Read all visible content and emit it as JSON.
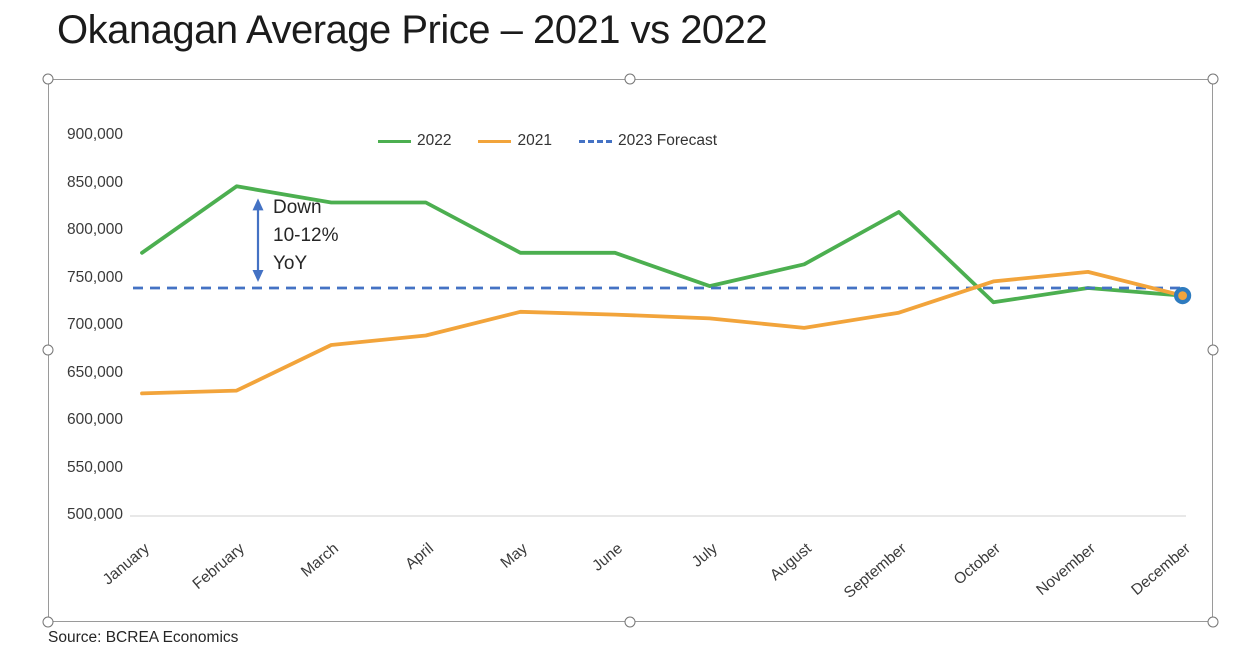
{
  "slide": {
    "title": "Okanagan Average Price – 2021 vs 2022",
    "source": "Source: BCREA Economics"
  },
  "annotation": {
    "line1": "Down",
    "line2": "10-12%",
    "line3": "YoY"
  },
  "chart_data": {
    "type": "line",
    "title": "Okanagan Average Price – 2021 vs 2022",
    "categories": [
      "January",
      "February",
      "March",
      "April",
      "May",
      "June",
      "July",
      "August",
      "September",
      "October",
      "November",
      "December"
    ],
    "series": [
      {
        "name": "2022",
        "color": "#4caf50",
        "style": "solid",
        "values": [
          777000,
          847000,
          830000,
          830000,
          777000,
          777000,
          742000,
          765000,
          820000,
          725000,
          740000,
          732000
        ]
      },
      {
        "name": "2021",
        "color": "#f2a43b",
        "style": "solid",
        "values": [
          629000,
          632000,
          680000,
          690000,
          715000,
          712000,
          708000,
          698000,
          714000,
          747000,
          757000,
          732000
        ]
      },
      {
        "name": "2023 Forecast",
        "color": "#4472c4",
        "style": "dashed",
        "values": [
          740000,
          740000,
          740000,
          740000,
          740000,
          740000,
          740000,
          740000,
          740000,
          740000,
          740000,
          740000
        ]
      }
    ],
    "xlabel": "",
    "ylabel": "",
    "ylim": [
      500000,
      900000
    ],
    "ytick_step": 50000,
    "grid": false,
    "legend_position": "top-center",
    "endpoint_marker": {
      "month": "December",
      "value": 732000,
      "fill_color": "#f2a43b",
      "ring_color": "#2e7bbf"
    },
    "annotation": {
      "text": "Down 10-12% YoY",
      "at_month": "February",
      "arrow_from_value": 847000,
      "arrow_to_value": 740000,
      "arrow_color": "#4472c4"
    }
  }
}
